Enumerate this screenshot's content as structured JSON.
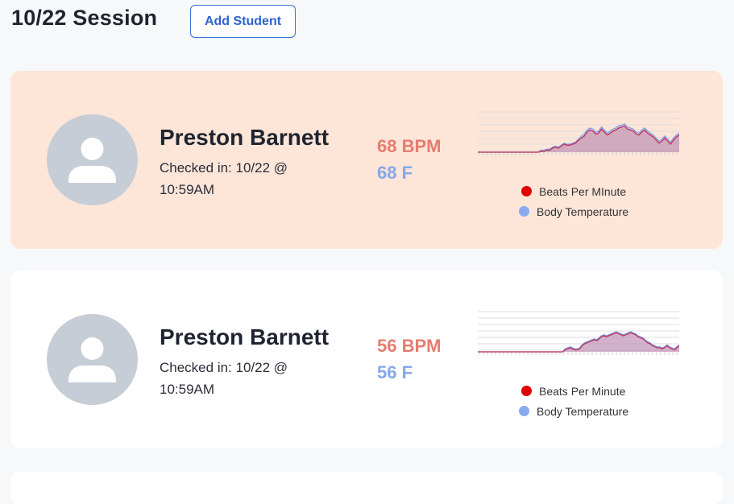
{
  "page": {
    "title": "10/22 Session"
  },
  "toolbar": {
    "add_student_label": "Add Student"
  },
  "students": [
    {
      "name": "Preston Barnett",
      "checkin": "Checked in: 10/22 @ 10:59AM",
      "bpm": "68 BPM",
      "temp": "68 F",
      "highlighted": true,
      "legend": [
        "Beats Per MInute",
        "Body Temperature"
      ]
    },
    {
      "name": "Preston Barnett",
      "checkin": "Checked in: 10/22 @ 10:59AM",
      "bpm": "56 BPM",
      "temp": "56 F",
      "highlighted": false,
      "legend": [
        "Beats Per Minute",
        "Body Temperature"
      ]
    }
  ],
  "colors": {
    "bpm": "#e57c70",
    "temp": "#86a7e8",
    "highlight_card": "#fde5d8",
    "accent": "#2d63cf"
  },
  "chart_data": [
    {
      "type": "area",
      "series": [
        {
          "name": "Beats Per MInute",
          "values": [
            0,
            0,
            0,
            0,
            0,
            0,
            0,
            0,
            0,
            0,
            0,
            0,
            0,
            0,
            0,
            0,
            0,
            0,
            0,
            0,
            0,
            0,
            1,
            1,
            2,
            2,
            4,
            5,
            4,
            6,
            8,
            7,
            7,
            8,
            9,
            12,
            14,
            16,
            20,
            22,
            21,
            18,
            19,
            23,
            20,
            17,
            19,
            21,
            22,
            24,
            25,
            26,
            23,
            22,
            21,
            18,
            17,
            20,
            22,
            19,
            17,
            15,
            12,
            9,
            11,
            14,
            11,
            8,
            12,
            15,
            17
          ]
        },
        {
          "name": "Body Temperature",
          "values": [
            0,
            0,
            0,
            0,
            0,
            0,
            0,
            0,
            0,
            0,
            0,
            0,
            0,
            0,
            0,
            0,
            0,
            0,
            0,
            0,
            0,
            0,
            2,
            2,
            3,
            3,
            5,
            6,
            5,
            7,
            9,
            8,
            8,
            9,
            10,
            13,
            16,
            18,
            22,
            24,
            23,
            20,
            21,
            25,
            22,
            19,
            21,
            23,
            24,
            26,
            27,
            28,
            25,
            24,
            23,
            20,
            19,
            22,
            24,
            21,
            19,
            17,
            14,
            11,
            13,
            16,
            13,
            10,
            14,
            17,
            19
          ]
        }
      ]
    },
    {
      "type": "area",
      "series": [
        {
          "name": "Beats Per Minute",
          "values": [
            0,
            0,
            0,
            0,
            0,
            0,
            0,
            0,
            0,
            0,
            0,
            0,
            0,
            0,
            0,
            0,
            0,
            0,
            0,
            0,
            0,
            0,
            0,
            0,
            0,
            0,
            0,
            0,
            0,
            0,
            0,
            0,
            0,
            0,
            0,
            0,
            2,
            3,
            4,
            3,
            2,
            2,
            3,
            6,
            8,
            9,
            10,
            11,
            12,
            11,
            13,
            15,
            16,
            15,
            16,
            17,
            18,
            19,
            18,
            17,
            16,
            17,
            18,
            19,
            18,
            17,
            15,
            14,
            13,
            11,
            9,
            8,
            6,
            5,
            4,
            4,
            3,
            4,
            6,
            4,
            3,
            2,
            4,
            6
          ]
        },
        {
          "name": "Body Temperature",
          "values": [
            0,
            0,
            0,
            0,
            0,
            0,
            0,
            0,
            0,
            0,
            0,
            0,
            0,
            0,
            0,
            0,
            0,
            0,
            0,
            0,
            0,
            0,
            0,
            0,
            0,
            0,
            0,
            0,
            0,
            0,
            0,
            0,
            0,
            0,
            0,
            0,
            3,
            4,
            5,
            4,
            3,
            3,
            4,
            7,
            9,
            10,
            11,
            12,
            13,
            12,
            14,
            16,
            17,
            16,
            17,
            18,
            19,
            20,
            19,
            18,
            17,
            18,
            19,
            20,
            19,
            18,
            16,
            15,
            14,
            12,
            10,
            9,
            7,
            6,
            5,
            5,
            4,
            5,
            7,
            5,
            4,
            3,
            5,
            7
          ]
        }
      ]
    }
  ]
}
